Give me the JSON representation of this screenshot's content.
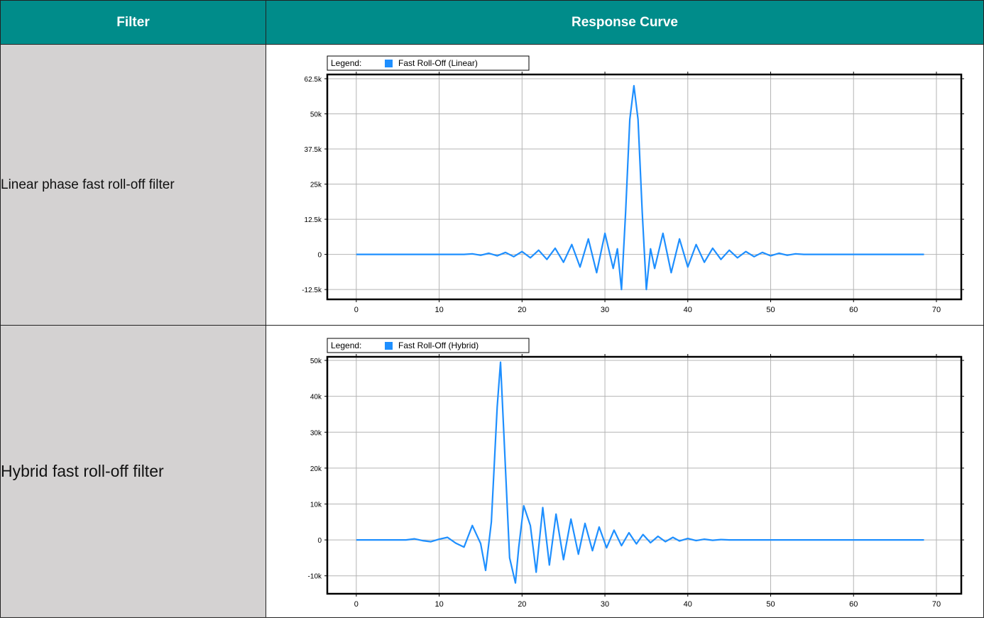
{
  "table": {
    "headers": [
      "Filter",
      "Response Curve"
    ],
    "rows": [
      {
        "label": "Linear phase fast roll-off filter"
      },
      {
        "label": "Hybrid fast roll-off filter"
      }
    ]
  },
  "colors": {
    "header_bg": "#008c8a",
    "label_bg": "#d4d2d2",
    "series": "#1e8fff"
  },
  "chart_data": [
    {
      "type": "line",
      "legend_prefix": "Legend:",
      "legend_placement": "top-left",
      "grid": true,
      "series": [
        {
          "name": "Fast Roll-Off (Linear)",
          "x": [
            0,
            13,
            14,
            15,
            16,
            17,
            18,
            19,
            20,
            21,
            22,
            23,
            24,
            25,
            26,
            27,
            28,
            29,
            30,
            31,
            31.5,
            32,
            32.5,
            33,
            33.5,
            34,
            34.5,
            35,
            35.5,
            36,
            37,
            38,
            39,
            40,
            41,
            42,
            43,
            44,
            45,
            46,
            47,
            48,
            49,
            50,
            51,
            52,
            53,
            54,
            68.5
          ],
          "y": [
            0,
            0,
            200,
            -300,
            400,
            -500,
            700,
            -800,
            1000,
            -1200,
            1500,
            -1800,
            2200,
            -2800,
            3500,
            -4500,
            5500,
            -6500,
            7500,
            -5000,
            2000,
            -12500,
            15000,
            48000,
            60000,
            48000,
            15000,
            -12500,
            2000,
            -5000,
            7500,
            -6500,
            5500,
            -4500,
            3500,
            -2800,
            2200,
            -1800,
            1500,
            -1200,
            1000,
            -800,
            700,
            -500,
            400,
            -300,
            200,
            0,
            0
          ]
        }
      ],
      "xticks": [
        "0",
        "10",
        "20",
        "30",
        "40",
        "50",
        "60",
        "70"
      ],
      "yticks": [
        "62.5k",
        "50k",
        "37.5k",
        "25k",
        "12.5k",
        "0",
        "-12.5k"
      ],
      "xlim": [
        -3.5,
        73
      ],
      "ylim": [
        -16000,
        64000
      ]
    },
    {
      "type": "line",
      "legend_prefix": "Legend:",
      "legend_placement": "top-left",
      "grid": true,
      "series": [
        {
          "name": "Fast Roll-Off (Hybrid)",
          "x": [
            0,
            6,
            7,
            8,
            9,
            10,
            11,
            12,
            13,
            14,
            15,
            15.6,
            16.3,
            17,
            17.4,
            17.8,
            18.5,
            19.2,
            19.6,
            20.2,
            21,
            21.7,
            22.5,
            23.3,
            24.1,
            25,
            25.9,
            26.8,
            27.6,
            28.5,
            29.3,
            30.2,
            31.1,
            32,
            32.9,
            33.8,
            34.6,
            35.5,
            36.4,
            37.3,
            38.2,
            39,
            40,
            41,
            42,
            43,
            44,
            45,
            68.5
          ],
          "y": [
            0,
            0,
            300,
            -200,
            -500,
            200,
            700,
            -900,
            -2000,
            4000,
            -1000,
            -8500,
            5000,
            37000,
            49500,
            30000,
            -5000,
            -12000,
            -2000,
            9500,
            4000,
            -9000,
            9000,
            -7000,
            7200,
            -5500,
            5800,
            -4000,
            4600,
            -3000,
            3600,
            -2200,
            2700,
            -1600,
            2000,
            -1100,
            1500,
            -800,
            1000,
            -500,
            700,
            -300,
            400,
            -200,
            200,
            -100,
            100,
            0,
            0
          ]
        }
      ],
      "xticks": [
        "0",
        "10",
        "20",
        "30",
        "40",
        "50",
        "60",
        "70"
      ],
      "yticks": [
        "50k",
        "40k",
        "30k",
        "20k",
        "10k",
        "0",
        "-10k"
      ],
      "xlim": [
        -3.5,
        73
      ],
      "ylim": [
        -15000,
        51000
      ]
    }
  ]
}
